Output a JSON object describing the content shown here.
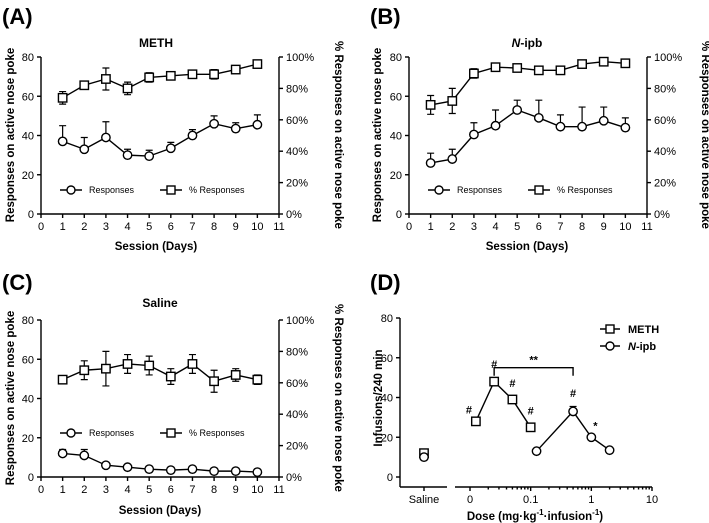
{
  "chart_data": [
    {
      "panel": "(A)",
      "type": "line",
      "title": "METH",
      "xlabel": "Session (Days)",
      "ylabel": "Responses on active nose poke",
      "ylabel_right": "% Responses on active nose poke",
      "xlim": [
        0,
        11
      ],
      "ylim": [
        0,
        80
      ],
      "ylim_right": [
        0,
        100
      ],
      "x_ticks": [
        "0",
        "1",
        "2",
        "3",
        "4",
        "5",
        "6",
        "7",
        "8",
        "9",
        "10",
        "11"
      ],
      "y_ticks": [
        "0",
        "20",
        "40",
        "60",
        "80"
      ],
      "y_ticks_right": [
        "0%",
        "20%",
        "40%",
        "60%",
        "80%",
        "100%"
      ],
      "legend": [
        "Responses",
        "% Responses"
      ],
      "series": [
        {
          "name": "Responses",
          "marker": "circle",
          "axis": "left",
          "x": [
            1,
            2,
            3,
            4,
            5,
            6,
            7,
            8,
            9,
            10
          ],
          "values": [
            37,
            33,
            39,
            30,
            29.5,
            33.5,
            40,
            46,
            43.5,
            45.5
          ],
          "errors": [
            8,
            6,
            8,
            3,
            3,
            3,
            3,
            4,
            3,
            5
          ]
        },
        {
          "name": "% Responses",
          "marker": "square",
          "axis": "right",
          "x": [
            1,
            2,
            3,
            4,
            5,
            6,
            7,
            8,
            9,
            10
          ],
          "values": [
            74,
            82,
            86,
            80,
            87,
            88,
            89,
            89,
            92,
            95.5
          ],
          "errors": [
            4,
            2,
            7,
            4,
            3,
            2,
            2,
            3,
            2,
            1.5
          ]
        }
      ]
    },
    {
      "panel": "(B)",
      "type": "line",
      "title": "N-ipb",
      "title_italic": "N",
      "title_rest": "-ipb",
      "xlabel": "Session (Days)",
      "ylabel": "Responses on active nose poke",
      "ylabel_right": "% Responses on active nose poke",
      "xlim": [
        0,
        11
      ],
      "ylim": [
        0,
        80
      ],
      "ylim_right": [
        0,
        100
      ],
      "x_ticks": [
        "0",
        "1",
        "2",
        "3",
        "4",
        "5",
        "6",
        "7",
        "8",
        "9",
        "10",
        "11"
      ],
      "y_ticks": [
        "0",
        "20",
        "40",
        "60",
        "80"
      ],
      "y_ticks_right": [
        "0%",
        "20%",
        "40%",
        "60%",
        "80%",
        "100%"
      ],
      "legend": [
        "Responses",
        "% Responses"
      ],
      "series": [
        {
          "name": "Responses",
          "marker": "circle",
          "axis": "left",
          "x": [
            1,
            2,
            3,
            4,
            5,
            6,
            7,
            8,
            9,
            10
          ],
          "values": [
            26,
            28,
            40.5,
            45,
            53,
            49,
            44.5,
            44.5,
            47.5,
            44
          ],
          "errors": [
            5,
            5,
            6,
            8,
            5,
            9,
            6,
            10,
            7,
            5
          ]
        },
        {
          "name": "% Responses",
          "marker": "square",
          "axis": "right",
          "x": [
            1,
            2,
            3,
            4,
            5,
            6,
            7,
            8,
            9,
            10
          ],
          "values": [
            69.5,
            72,
            89.5,
            93.5,
            93,
            91.5,
            91.5,
            95.5,
            97,
            96
          ],
          "errors": [
            6,
            8,
            3,
            1,
            1.5,
            2.5,
            2,
            1,
            1,
            1
          ]
        }
      ]
    },
    {
      "panel": "(C)",
      "type": "line",
      "title": "Saline",
      "xlabel": "Session (Days)",
      "ylabel": "Responses on active nose poke",
      "ylabel_right": "% Responses on active nose poke",
      "xlim": [
        0,
        11
      ],
      "ylim": [
        0,
        80
      ],
      "ylim_right": [
        0,
        100
      ],
      "x_ticks": [
        "0",
        "1",
        "2",
        "3",
        "4",
        "5",
        "6",
        "7",
        "8",
        "9",
        "10",
        "11"
      ],
      "y_ticks": [
        "0",
        "20",
        "40",
        "60",
        "80"
      ],
      "y_ticks_right": [
        "0%",
        "20%",
        "40%",
        "60%",
        "80%",
        "100%"
      ],
      "legend": [
        "Responses",
        "% Responses"
      ],
      "series": [
        {
          "name": "Responses",
          "marker": "circle",
          "axis": "left",
          "x": [
            1,
            2,
            3,
            4,
            5,
            6,
            7,
            8,
            9,
            10
          ],
          "values": [
            12,
            11,
            6,
            5,
            4,
            3.5,
            4,
            3,
            3,
            2.5
          ],
          "errors": [
            2,
            3,
            1,
            1,
            1,
            0.5,
            1,
            0.5,
            1,
            0.5
          ]
        },
        {
          "name": "% Responses",
          "marker": "square",
          "axis": "right",
          "x": [
            1,
            2,
            3,
            4,
            5,
            6,
            7,
            8,
            9,
            10
          ],
          "values": [
            62,
            68,
            69,
            72,
            71,
            64,
            72,
            61,
            65,
            62
          ],
          "errors": [
            2,
            6,
            11,
            6,
            6,
            5,
            6,
            7,
            4,
            3
          ]
        }
      ]
    },
    {
      "panel": "(D)",
      "type": "line",
      "xlabel": "Dose (mg·kg-1·infusion-1)",
      "xlabel_parts": [
        "Dose (mg·kg",
        "-1",
        "·infusion",
        "-1",
        ")"
      ],
      "ylabel": "Infusions/240 min",
      "ylim": [
        0,
        80
      ],
      "x_scale": "log",
      "xlim_log": [
        0.01,
        10
      ],
      "x_ticks": [
        "Saline",
        "0",
        "0.1",
        "1",
        "10"
      ],
      "y_ticks": [
        "0",
        "20",
        "40",
        "60",
        "80"
      ],
      "legend": [
        "METH",
        "N-ipb"
      ],
      "legend_parts": {
        "meth": "METH",
        "nipb_italic": "N",
        "nipb_rest": "-ipb"
      },
      "saline": {
        "METH": 12,
        "N-ipb": 10
      },
      "series": [
        {
          "name": "METH",
          "marker": "square",
          "x": [
            0.0125,
            0.025,
            0.05,
            0.1
          ],
          "values": [
            28,
            48,
            39,
            25
          ],
          "errors": [
            1.5,
            2,
            1.5,
            1.5
          ],
          "labels": [
            "#",
            "#",
            "#",
            "#"
          ]
        },
        {
          "name": "N-ipb",
          "marker": "circle",
          "x": [
            0.125,
            0.5,
            1,
            2
          ],
          "values": [
            13,
            33,
            20,
            13.5
          ],
          "errors": [
            0.5,
            2.5,
            1,
            0.5
          ],
          "labels": [
            "",
            "#",
            "*",
            ""
          ]
        }
      ],
      "comparison": {
        "label": "**",
        "from_x": 0.025,
        "to_x": 0.5,
        "y": 55
      }
    }
  ]
}
